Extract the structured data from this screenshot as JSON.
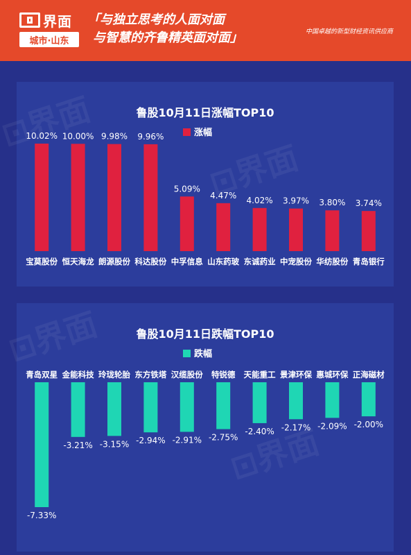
{
  "header": {
    "logo_name": "界面",
    "logo_city": "城市·山东",
    "slogan_line1": "「与独立思考的人面对面",
    "slogan_line2": "与智慧的齐鲁精英面对面」",
    "tagline": "中国卓越的新型财经资讯供应商"
  },
  "colors": {
    "background": "#26308a",
    "header": "#e5492a",
    "panel": "#2c3d9c",
    "gain_bar": "#e0213f",
    "loss_bar": "#1fd6b4"
  },
  "chart_data": [
    {
      "type": "bar",
      "title": "鲁股10月11日涨幅TOP10",
      "legend": "涨幅",
      "legend_position": "top-center",
      "categories": [
        "宝莫股份",
        "恒天海龙",
        "朗源股份",
        "科达股份",
        "中孚信息",
        "山东药玻",
        "东诚药业",
        "中宠股份",
        "华纺股份",
        "青岛银行"
      ],
      "values": [
        10.02,
        10.0,
        9.98,
        9.96,
        5.09,
        4.47,
        4.02,
        3.97,
        3.8,
        3.74
      ],
      "labels": [
        "10.02%",
        "10.00%",
        "9.98%",
        "9.96%",
        "5.09%",
        "4.47%",
        "4.02%",
        "3.97%",
        "3.80%",
        "3.74%"
      ],
      "unit": "%",
      "ylim": [
        0,
        10.02
      ],
      "grid": false,
      "color": "#e0213f"
    },
    {
      "type": "bar",
      "title": "鲁股10月11日跌幅TOP10",
      "legend": "跌幅",
      "legend_position": "top-center",
      "categories": [
        "青岛双星",
        "金能科技",
        "玲珑轮胎",
        "东方铁塔",
        "汉缆股份",
        "特锐德",
        "天能重工",
        "景津环保",
        "惠城环保",
        "正海磁材"
      ],
      "values": [
        -7.33,
        -3.21,
        -3.15,
        -2.94,
        -2.91,
        -2.75,
        -2.4,
        -2.17,
        -2.09,
        -2.0
      ],
      "labels": [
        "-7.33%",
        "-3.21%",
        "-3.15%",
        "-2.94%",
        "-2.91%",
        "-2.75%",
        "-2.40%",
        "-2.17%",
        "-2.09%",
        "-2.00%"
      ],
      "unit": "%",
      "ylim": [
        -7.33,
        0
      ],
      "grid": false,
      "color": "#1fd6b4"
    }
  ]
}
